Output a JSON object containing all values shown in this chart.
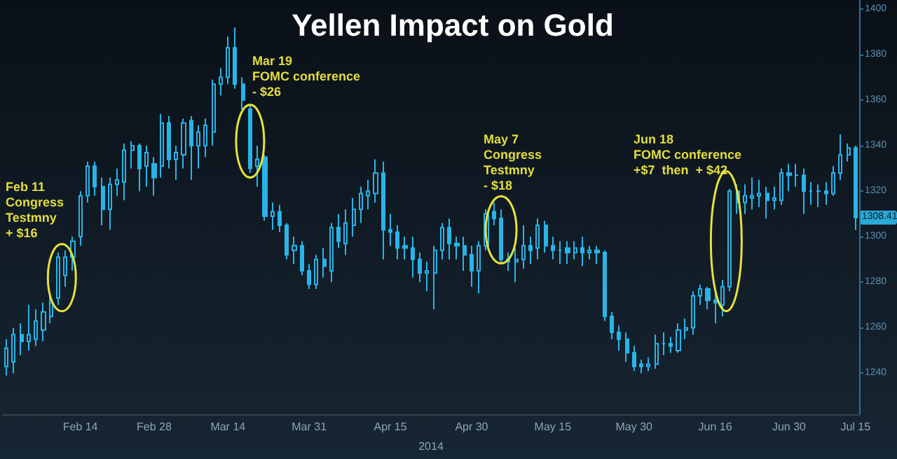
{
  "chart_data": {
    "type": "candlestick",
    "title": "Yellen Impact on Gold",
    "xlabel": "2014",
    "annotations": [
      "Feb 11\nCongress\nTestmny\n+ $16",
      "Mar 19\nFOMC conference\n- $26",
      "May 7\nCongress\nTestmny\n- $18",
      "Jun 18\nFOMC conference\n+$7  then  + $42",
      {
        "text": "1308.41",
        "y": 1308.41
      }
    ],
    "categories": [
      null,
      null,
      null,
      null,
      null,
      null,
      null,
      null,
      null,
      null,
      "Feb 14",
      null,
      null,
      null,
      null,
      null,
      null,
      null,
      null,
      null,
      "Feb 28",
      null,
      null,
      null,
      null,
      null,
      null,
      null,
      null,
      null,
      "Mar 14",
      null,
      null,
      null,
      null,
      null,
      null,
      null,
      null,
      null,
      null,
      "Mar 31",
      null,
      null,
      null,
      null,
      null,
      null,
      null,
      null,
      null,
      null,
      "Apr 15",
      null,
      null,
      null,
      null,
      null,
      null,
      null,
      null,
      null,
      null,
      "Apr 30",
      null,
      null,
      null,
      null,
      null,
      null,
      null,
      null,
      null,
      null,
      "May 15",
      null,
      null,
      null,
      null,
      null,
      null,
      null,
      null,
      null,
      null,
      "May 30",
      null,
      null,
      null,
      null,
      null,
      null,
      null,
      null,
      null,
      null,
      "Jun 16",
      null,
      null,
      null,
      null,
      null,
      null,
      null,
      null,
      null,
      "Jun 30",
      null,
      null,
      null,
      null,
      null,
      null,
      null,
      null,
      "Jul 15"
    ],
    "series": [
      {
        "color": "#29b4e8",
        "ohlc": [
          [
            1243,
            1255,
            1239,
            1251
          ],
          [
            1245,
            1260,
            1240,
            1257
          ],
          [
            1257,
            1262,
            1248,
            1254
          ],
          [
            1254,
            1270,
            1250,
            1257
          ],
          [
            1255,
            1268,
            1252,
            1263
          ],
          [
            1259,
            1271,
            1254,
            1267
          ],
          [
            1265,
            1274,
            1262,
            1271
          ],
          [
            1273,
            1293,
            1270,
            1291
          ],
          [
            1283,
            1294,
            1278,
            1291
          ],
          [
            1291,
            1300,
            1285,
            1298
          ],
          [
            1300,
            1320,
            1296,
            1318
          ],
          [
            1318,
            1333,
            1315,
            1331
          ],
          [
            1331,
            1333,
            1318,
            1322
          ],
          [
            1322,
            1326,
            1305,
            1312
          ],
          [
            1312,
            1326,
            1303,
            1323
          ],
          [
            1323,
            1330,
            1318,
            1325
          ],
          [
            1324,
            1341,
            1316,
            1338
          ],
          [
            1338,
            1342,
            1330,
            1340
          ],
          [
            1340,
            1341,
            1320,
            1330
          ],
          [
            1331,
            1340,
            1322,
            1337
          ],
          [
            1332,
            1335,
            1318,
            1326
          ],
          [
            1331,
            1354,
            1326,
            1350
          ],
          [
            1350,
            1353,
            1330,
            1334
          ],
          [
            1334,
            1340,
            1325,
            1337
          ],
          [
            1336,
            1352,
            1330,
            1350
          ],
          [
            1351,
            1353,
            1325,
            1340
          ],
          [
            1340,
            1349,
            1330,
            1346
          ],
          [
            1340,
            1352,
            1335,
            1349
          ],
          [
            1346,
            1369,
            1340,
            1367
          ],
          [
            1367,
            1374,
            1362,
            1370
          ],
          [
            1370,
            1388,
            1367,
            1383
          ],
          [
            1383,
            1392,
            1365,
            1367
          ],
          [
            1367,
            1370,
            1356,
            1360
          ],
          [
            1356,
            1358,
            1328,
            1330
          ],
          [
            1331,
            1340,
            1322,
            1334
          ],
          [
            1335,
            1336,
            1307,
            1309
          ],
          [
            1309,
            1315,
            1303,
            1311
          ],
          [
            1311,
            1314,
            1302,
            1305
          ],
          [
            1305,
            1306,
            1290,
            1292
          ],
          [
            1294,
            1300,
            1288,
            1296
          ],
          [
            1296,
            1298,
            1283,
            1285
          ],
          [
            1285,
            1288,
            1277,
            1279
          ],
          [
            1279,
            1292,
            1277,
            1290
          ],
          [
            1290,
            1295,
            1282,
            1287
          ],
          [
            1285,
            1306,
            1280,
            1304
          ],
          [
            1304,
            1310,
            1295,
            1298
          ],
          [
            1297,
            1312,
            1292,
            1306
          ],
          [
            1305,
            1317,
            1300,
            1312
          ],
          [
            1312,
            1322,
            1306,
            1319
          ],
          [
            1318,
            1325,
            1312,
            1320
          ],
          [
            1319,
            1334,
            1315,
            1328
          ],
          [
            1328,
            1333,
            1290,
            1303
          ],
          [
            1303,
            1310,
            1296,
            1302
          ],
          [
            1302,
            1305,
            1290,
            1295
          ],
          [
            1296,
            1300,
            1290,
            1295
          ],
          [
            1295,
            1300,
            1282,
            1290
          ],
          [
            1290,
            1293,
            1280,
            1284
          ],
          [
            1284,
            1289,
            1276,
            1285
          ],
          [
            1284,
            1296,
            1268,
            1294
          ],
          [
            1294,
            1306,
            1290,
            1304
          ],
          [
            1304,
            1308,
            1290,
            1297
          ],
          [
            1297,
            1300,
            1290,
            1296
          ],
          [
            1296,
            1300,
            1285,
            1292
          ],
          [
            1292,
            1296,
            1278,
            1285
          ],
          [
            1285,
            1298,
            1275,
            1296
          ],
          [
            1296,
            1312,
            1294,
            1310
          ],
          [
            1311,
            1315,
            1305,
            1308
          ],
          [
            1308,
            1312,
            1288,
            1290
          ],
          [
            1290,
            1293,
            1285,
            1289
          ],
          [
            1289,
            1295,
            1280,
            1290
          ],
          [
            1290,
            1305,
            1286,
            1296
          ],
          [
            1296,
            1300,
            1288,
            1294
          ],
          [
            1295,
            1308,
            1290,
            1305
          ],
          [
            1305,
            1307,
            1293,
            1296
          ],
          [
            1296,
            1300,
            1290,
            1294
          ],
          [
            1294,
            1298,
            1288,
            1294
          ],
          [
            1295,
            1298,
            1288,
            1293
          ],
          [
            1293,
            1298,
            1290,
            1295
          ],
          [
            1295,
            1300,
            1287,
            1293
          ],
          [
            1293,
            1296,
            1290,
            1294
          ],
          [
            1294,
            1296,
            1288,
            1293
          ],
          [
            1293,
            1294,
            1263,
            1265
          ],
          [
            1265,
            1267,
            1255,
            1258
          ],
          [
            1258,
            1261,
            1250,
            1255
          ],
          [
            1255,
            1258,
            1245,
            1249
          ],
          [
            1249,
            1252,
            1241,
            1243
          ],
          [
            1244,
            1246,
            1240,
            1243
          ],
          [
            1243,
            1247,
            1241,
            1244
          ],
          [
            1244,
            1257,
            1242,
            1253
          ],
          [
            1253,
            1258,
            1248,
            1253
          ],
          [
            1253,
            1256,
            1249,
            1252
          ],
          [
            1250,
            1262,
            1249,
            1259
          ],
          [
            1259,
            1264,
            1255,
            1260
          ],
          [
            1260,
            1276,
            1257,
            1274
          ],
          [
            1274,
            1279,
            1270,
            1277
          ],
          [
            1277,
            1278,
            1268,
            1272
          ],
          [
            1272,
            1275,
            1262,
            1271
          ],
          [
            1270,
            1281,
            1265,
            1278
          ],
          [
            1278,
            1321,
            1276,
            1320
          ],
          [
            1320,
            1323,
            1310,
            1315
          ],
          [
            1315,
            1323,
            1310,
            1318
          ],
          [
            1317,
            1326,
            1312,
            1318
          ],
          [
            1318,
            1325,
            1313,
            1319
          ],
          [
            1319,
            1322,
            1308,
            1316
          ],
          [
            1316,
            1322,
            1312,
            1317
          ],
          [
            1316,
            1330,
            1314,
            1328
          ],
          [
            1328,
            1332,
            1320,
            1327
          ],
          [
            1327,
            1332,
            1322,
            1327
          ],
          [
            1327,
            1330,
            1310,
            1320
          ],
          [
            1320,
            1324,
            1314,
            1320
          ],
          [
            1320,
            1323,
            1313,
            1320
          ],
          [
            1320,
            1324,
            1314,
            1319
          ],
          [
            1319,
            1331,
            1318,
            1328
          ],
          [
            1328,
            1345,
            1325,
            1336
          ],
          [
            1336,
            1341,
            1333,
            1339
          ],
          [
            1339,
            1340,
            1303,
            1308.41
          ]
        ]
      }
    ],
    "ylim": [
      1222,
      1404
    ],
    "yticks": [
      {
        "value": 1240,
        "label": "1240"
      },
      {
        "value": 1260,
        "label": "1260"
      },
      {
        "value": 1280,
        "label": "1280"
      },
      {
        "value": 1300,
        "label": "1300"
      },
      {
        "value": 1320,
        "label": "1320"
      },
      {
        "value": 1340,
        "label": "1340"
      },
      {
        "value": 1360,
        "label": "1360"
      },
      {
        "value": 1380,
        "label": "1380"
      },
      {
        "value": 1400,
        "label": "1400"
      }
    ]
  }
}
